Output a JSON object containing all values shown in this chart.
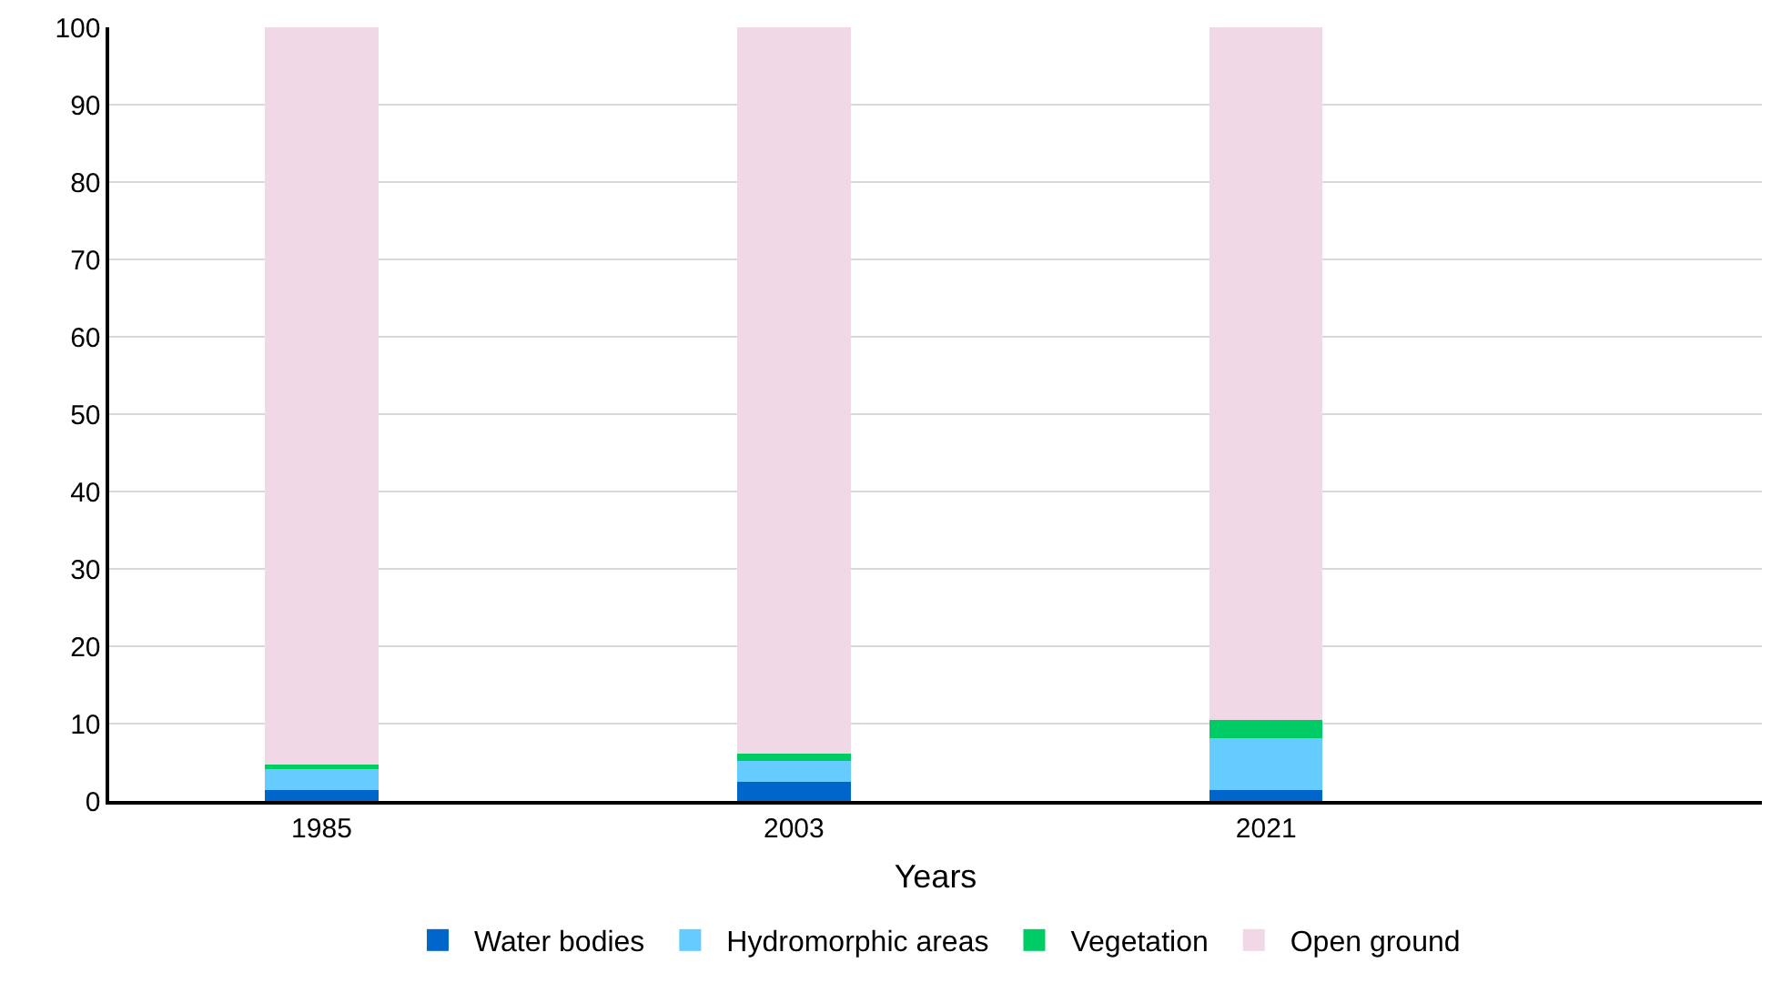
{
  "chart_data": {
    "type": "bar",
    "stacked": true,
    "xlabel": "Years",
    "categories": [
      "1985",
      "2003",
      "2021"
    ],
    "series": [
      {
        "name": "Water bodies",
        "color": "#0066cc",
        "values": [
          1.4,
          2.5,
          1.4
        ]
      },
      {
        "name": "Hydromorphic areas",
        "color": "#66ccff",
        "values": [
          2.7,
          2.7,
          6.7
        ]
      },
      {
        "name": "Vegetation",
        "color": "#00cc66",
        "values": [
          0.6,
          0.9,
          2.4
        ]
      },
      {
        "name": "Open ground",
        "color": "#f0d8e6",
        "values": [
          95.3,
          93.9,
          89.5
        ]
      }
    ],
    "ylim": [
      0,
      100
    ],
    "yticks": [
      0,
      10,
      20,
      30,
      40,
      50,
      60,
      70,
      80,
      90,
      100
    ],
    "grid": "y",
    "legend": "bottom"
  }
}
